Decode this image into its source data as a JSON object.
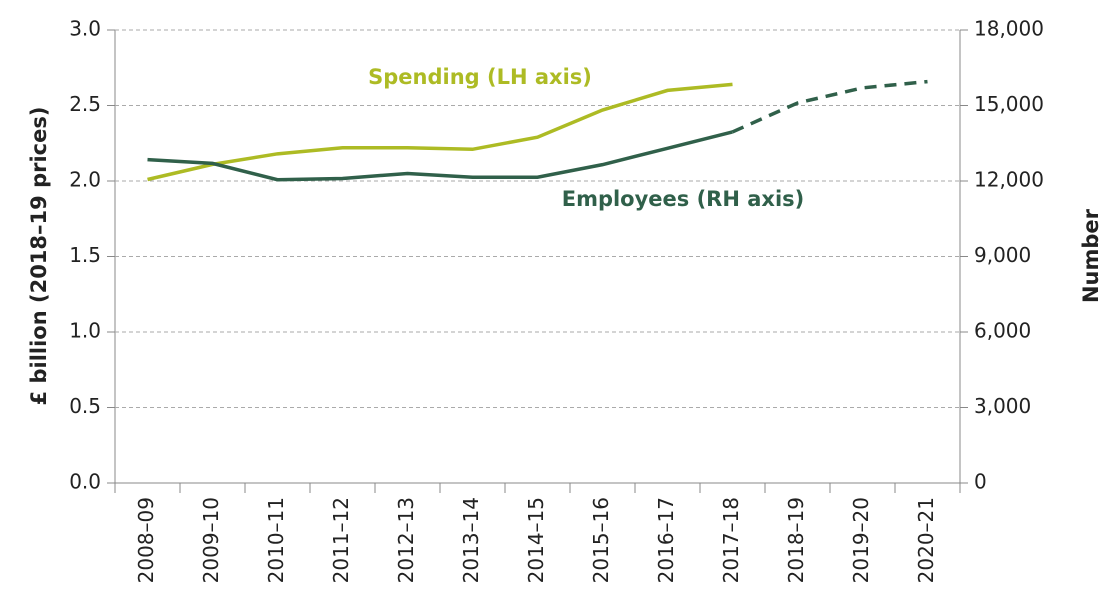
{
  "chart_data": {
    "type": "line",
    "categories": [
      "2008–09",
      "2009–10",
      "2010–11",
      "2011–12",
      "2012–13",
      "2013–14",
      "2014–15",
      "2015–16",
      "2016–17",
      "2017–18",
      "2018–19",
      "2019–20",
      "2020–21"
    ],
    "series": [
      {
        "name": "Spending (LH axis)",
        "color": "#adbb24",
        "values": [
          2.01,
          2.11,
          2.18,
          2.22,
          2.22,
          2.21,
          2.29,
          2.47,
          2.6,
          2.64,
          null,
          null,
          null
        ]
      },
      {
        "name": "Employees (RH axis)",
        "color": "#30604a",
        "axis": "y2",
        "dashed_from": 9,
        "values": [
          12850,
          12700,
          12050,
          12100,
          12300,
          12150,
          12150,
          12650,
          13300,
          13950,
          15100,
          15700,
          15950
        ]
      }
    ],
    "ylabel": "£ billion (2018–19 prices)",
    "y2label": "Number",
    "ylim": [
      0,
      3
    ],
    "yticks": [
      {
        "value": 0,
        "label": "0.0"
      },
      0.5,
      {
        "value": 1,
        "label": "1.0"
      },
      1.5,
      {
        "value": 2,
        "label": "2.0"
      },
      2.5,
      {
        "value": 3,
        "label": "3.0"
      }
    ],
    "y2lim": [
      0,
      18000
    ],
    "y2ticks": [
      0,
      {
        "value": 3000,
        "label": "3,000"
      },
      {
        "value": 6000,
        "label": "6,000"
      },
      {
        "value": 9000,
        "label": "9,000"
      },
      {
        "value": 12000,
        "label": "12,000"
      },
      {
        "value": 15000,
        "label": "15,000"
      },
      {
        "value": 18000,
        "label": "18,000"
      }
    ],
    "grid": true
  }
}
